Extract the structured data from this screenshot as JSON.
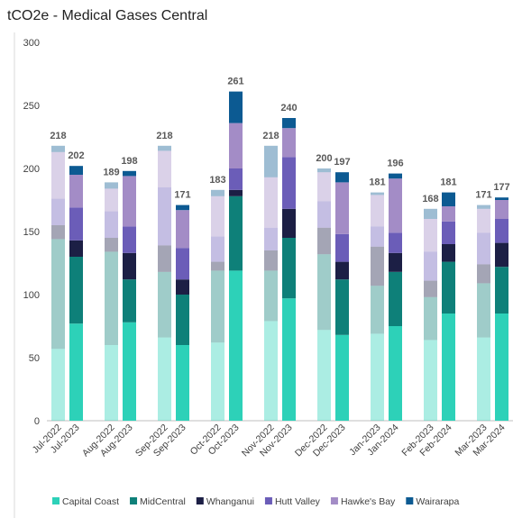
{
  "chart_data": {
    "type": "stacked_bar",
    "title": "tCO2e - Medical Gases Central",
    "categories": [
      "Jul-2022",
      "Jul-2023",
      "Aug-2022",
      "Aug-2023",
      "Sep-2022",
      "Sep-2023",
      "Oct-2022",
      "Oct-2023",
      "Nov-2022",
      "Nov-2023",
      "Dec-2022",
      "Dec-2023",
      "Jan-2023",
      "Jan-2024",
      "Feb-2023",
      "Feb-2024",
      "Mar-2023",
      "Mar-2024"
    ],
    "series": [
      {
        "name": "Capital Coast",
        "color": "#2dd1b8",
        "values": [
          57,
          77,
          60,
          78,
          66,
          60,
          62,
          119,
          79,
          97,
          72,
          68,
          69,
          75,
          64,
          85,
          66,
          85
        ]
      },
      {
        "name": "MidCentral",
        "color": "#0e8079",
        "values": [
          87,
          53,
          74,
          34,
          52,
          40,
          57,
          59,
          40,
          48,
          60,
          44,
          38,
          43,
          34,
          41,
          43,
          37
        ]
      },
      {
        "name": "Whanganui",
        "color": "#1c1f45",
        "values": [
          11,
          13,
          11,
          21,
          21,
          12,
          7,
          5,
          16,
          23,
          21,
          14,
          31,
          15,
          13,
          14,
          15,
          19
        ]
      },
      {
        "name": "Hutt Valley",
        "color": "#6b5db8",
        "values": [
          21,
          26,
          21,
          21,
          46,
          25,
          20,
          17,
          18,
          41,
          21,
          22,
          16,
          16,
          23,
          18,
          25,
          19
        ]
      },
      {
        "name": "Hawke's Bay",
        "color": "#a38cc6",
        "values": [
          37,
          26,
          18,
          40,
          29,
          30,
          32,
          36,
          40,
          23,
          23,
          41,
          25,
          43,
          26,
          12,
          19,
          15
        ]
      },
      {
        "name": "Wairarapa",
        "color": "#0c5a92",
        "values": [
          5,
          7,
          5,
          4,
          4,
          4,
          5,
          25,
          25,
          8,
          3,
          8,
          2,
          4,
          8,
          11,
          3,
          2
        ]
      }
    ],
    "totals": [
      218,
      202,
      189,
      198,
      218,
      171,
      183,
      261,
      218,
      240,
      200,
      197,
      181,
      196,
      168,
      181,
      171,
      177
    ],
    "ylim": [
      0,
      300
    ],
    "yticks": [
      0,
      50,
      100,
      150,
      200,
      250,
      300
    ],
    "grid": false,
    "legend": "bottom"
  }
}
